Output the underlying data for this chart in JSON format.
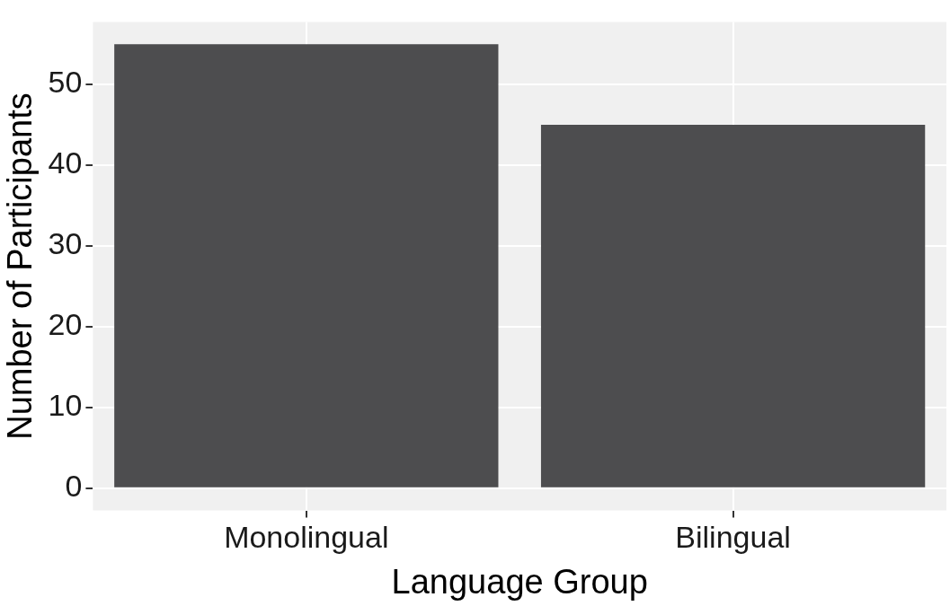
{
  "chart_data": {
    "type": "bar",
    "xlabel": "Language Group",
    "ylabel": "Number of Participants",
    "categories": [
      "Monolingual",
      "Bilingual"
    ],
    "values": [
      55,
      45
    ],
    "color": "#4d4d4f",
    "ylim": [
      -2.75,
      57.75
    ],
    "yticks": [
      0,
      10,
      20,
      30,
      40,
      50
    ],
    "grid": true,
    "legend": false
  }
}
